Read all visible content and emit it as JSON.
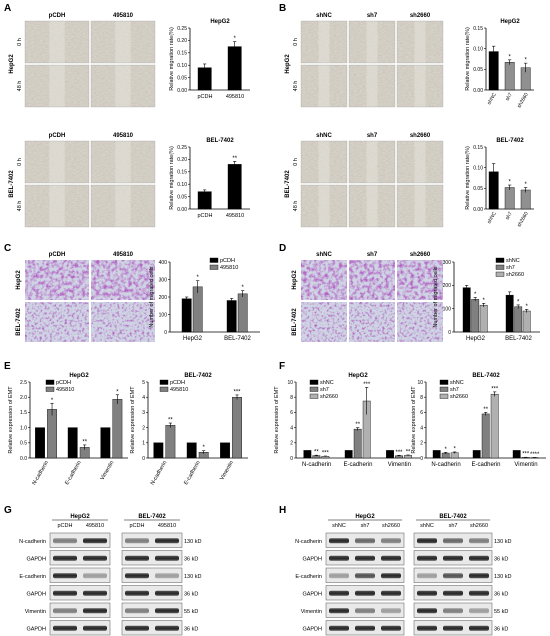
{
  "panels": {
    "A": {
      "letter": "A",
      "groups": [
        "pCDH",
        "495810"
      ],
      "rows": [
        "0 h",
        "48 h"
      ],
      "cell_lines": [
        "HepG2",
        "BEL-7402"
      ],
      "chart_data": [
        {
          "type": "bar",
          "title": "HepG2",
          "ylabel": "Relative migration rate(%)",
          "categories": [
            "pCDH",
            "495810"
          ],
          "values": [
            0.09,
            0.175
          ],
          "errors": [
            0.015,
            0.02
          ],
          "ylim": [
            0,
            0.25
          ],
          "yticks": [
            0.0,
            0.05,
            0.1,
            0.15,
            0.2,
            0.25
          ],
          "ytick_labels": [
            "0.00",
            "0.05",
            "0.10",
            "0.15",
            "0.20",
            "0.25"
          ],
          "significance": [
            "",
            "*"
          ]
        },
        {
          "type": "bar",
          "title": "BEL-7402",
          "ylabel": "Relative migration rate(%)",
          "categories": [
            "pCDH",
            "495810"
          ],
          "values": [
            0.07,
            0.18
          ],
          "errors": [
            0.007,
            0.012
          ],
          "ylim": [
            0,
            0.25
          ],
          "yticks": [
            0.0,
            0.05,
            0.1,
            0.15,
            0.2,
            0.25
          ],
          "ytick_labels": [
            "0.00",
            "0.05",
            "0.10",
            "0.15",
            "0.20",
            "0.25"
          ],
          "significance": [
            "",
            "**"
          ]
        }
      ]
    },
    "B": {
      "letter": "B",
      "groups": [
        "shNC",
        "sh7",
        "sh2660"
      ],
      "rows": [
        "0 h",
        "48 h"
      ],
      "cell_lines": [
        "HepG2",
        "BEL-7402"
      ],
      "chart_data": [
        {
          "type": "bar",
          "title": "HepG2",
          "ylabel": "Relative migration rate(%)",
          "categories": [
            "shNC",
            "sh7",
            "sh2660"
          ],
          "values": [
            0.093,
            0.067,
            0.054
          ],
          "errors": [
            0.013,
            0.006,
            0.011
          ],
          "ylim": [
            0,
            0.15
          ],
          "yticks": [
            0.0,
            0.05,
            0.1,
            0.15
          ],
          "ytick_labels": [
            "0.00",
            "0.05",
            "0.10",
            "0.15"
          ],
          "significance": [
            "",
            "*",
            "*"
          ]
        },
        {
          "type": "bar",
          "title": "BEL-7402",
          "ylabel": "Relative migration rate(%)",
          "categories": [
            "shNC",
            "sh7",
            "sh2660"
          ],
          "values": [
            0.09,
            0.052,
            0.046
          ],
          "errors": [
            0.02,
            0.006,
            0.006
          ],
          "ylim": [
            0,
            0.15
          ],
          "yticks": [
            0.0,
            0.05,
            0.1,
            0.15
          ],
          "ytick_labels": [
            "0.00",
            "0.05",
            "0.10",
            "0.15"
          ],
          "significance": [
            "",
            "*",
            "*"
          ]
        }
      ]
    },
    "C": {
      "letter": "C",
      "groups": [
        "pCDH",
        "495810"
      ],
      "cell_lines": [
        "HepG2",
        "BEL-7402"
      ],
      "chart_data": {
        "type": "bar",
        "ylabel": "Number of migrated cells",
        "categories": [
          "HepG2",
          "BEL-7402"
        ],
        "series": [
          {
            "name": "pCDH",
            "values": [
              190,
              180
            ],
            "errors": [
              10,
              12
            ],
            "color": "#000000"
          },
          {
            "name": "495810",
            "values": [
              258,
              218
            ],
            "errors": [
              35,
              18
            ],
            "color": "#808080"
          }
        ],
        "significance": [
          [
            "",
            "*"
          ],
          [
            "",
            "*"
          ]
        ],
        "ylim": [
          0,
          400
        ],
        "yticks": [
          0,
          100,
          200,
          300,
          400
        ],
        "legend": "top-right"
      }
    },
    "D": {
      "letter": "D",
      "groups": [
        "shNC",
        "sh7",
        "sh2660"
      ],
      "cell_lines": [
        "HepG2",
        "BEL-7402"
      ],
      "chart_data": {
        "type": "bar",
        "ylabel": "Number of migrated cells",
        "categories": [
          "HepG2",
          "BEL-7402"
        ],
        "series": [
          {
            "name": "shNC",
            "values": [
              190,
              158
            ],
            "errors": [
              10,
              14
            ],
            "color": "#000000"
          },
          {
            "name": "sh7",
            "values": [
              140,
              108
            ],
            "errors": [
              8,
              8
            ],
            "color": "#808080"
          },
          {
            "name": "sh2660",
            "values": [
              115,
              90
            ],
            "errors": [
              8,
              7
            ],
            "color": "#b0b0b0"
          }
        ],
        "significance": [
          [
            "",
            "*",
            "*"
          ],
          [
            "",
            "*",
            "*"
          ]
        ],
        "ylim": [
          0,
          300
        ],
        "yticks": [
          0,
          100,
          200,
          300
        ],
        "legend": "top-right"
      }
    },
    "E": {
      "letter": "E",
      "chart_data": [
        {
          "type": "bar",
          "title": "HepG2",
          "ylabel": "Relative expression of EMT",
          "categories": [
            "N-cadherin",
            "E-cadherin",
            "Vimentin"
          ],
          "series": [
            {
              "name": "pCDH",
              "values": [
                1,
                1,
                1
              ],
              "errors": [
                0,
                0,
                0
              ],
              "color": "#000000"
            },
            {
              "name": "495810",
              "values": [
                1.6,
                0.35,
                1.93
              ],
              "errors": [
                0.2,
                0.08,
                0.15
              ],
              "color": "#808080"
            }
          ],
          "significance": [
            [
              "",
              "*"
            ],
            [
              "",
              "**"
            ],
            [
              "",
              "*"
            ]
          ],
          "ylim": [
            0,
            2.5
          ],
          "yticks": [
            0.0,
            0.5,
            1.0,
            1.5,
            2.0,
            2.5
          ],
          "ytick_labels": [
            "0.0",
            "0.5",
            "1.0",
            "1.5",
            "2.0",
            "2.5"
          ],
          "legend": "top-left"
        },
        {
          "type": "bar",
          "title": "BEL-7402",
          "ylabel": "Relative expression of EMT",
          "categories": [
            "N-cadherin",
            "E-cadherin",
            "Vimentin"
          ],
          "series": [
            {
              "name": "pCDH",
              "values": [
                1,
                1,
                1
              ],
              "errors": [
                0,
                0,
                0
              ],
              "color": "#000000"
            },
            {
              "name": "495810",
              "values": [
                2.15,
                0.38,
                4.0
              ],
              "errors": [
                0.15,
                0.1,
                0.15
              ],
              "color": "#808080"
            }
          ],
          "significance": [
            [
              "",
              "**"
            ],
            [
              "",
              "*"
            ],
            [
              "",
              "***"
            ]
          ],
          "ylim": [
            0,
            5
          ],
          "yticks": [
            0,
            1,
            2,
            3,
            4,
            5
          ],
          "ytick_labels": [
            "0",
            "1",
            "2",
            "3",
            "4",
            "5"
          ],
          "legend": "top-left"
        }
      ]
    },
    "F": {
      "letter": "F",
      "chart_data": [
        {
          "type": "bar",
          "title": "HepG2",
          "ylabel": "Relative expression of EMT",
          "categories": [
            "N-cadherin",
            "E-cadherin",
            "Vimentin"
          ],
          "series": [
            {
              "name": "shNC",
              "values": [
                1,
                1,
                1
              ],
              "errors": [
                0,
                0,
                0
              ],
              "color": "#000000"
            },
            {
              "name": "sh7",
              "values": [
                0.32,
                3.8,
                0.3
              ],
              "errors": [
                0.05,
                0.2,
                0.05
              ],
              "color": "#808080"
            },
            {
              "name": "sh2660",
              "values": [
                0.22,
                7.5,
                0.35
              ],
              "errors": [
                0.04,
                1.8,
                0.05
              ],
              "color": "#b0b0b0"
            }
          ],
          "significance": [
            [
              "",
              "**",
              "***"
            ],
            [
              "",
              "**",
              "***"
            ],
            [
              "",
              "***",
              "**"
            ]
          ],
          "ylim": [
            0,
            10
          ],
          "yticks": [
            0,
            2,
            4,
            6,
            8,
            10
          ],
          "ytick_labels": [
            "0",
            "2",
            "4",
            "6",
            "8",
            "10"
          ],
          "legend": "top-left"
        },
        {
          "type": "bar",
          "title": "BEL-7402",
          "ylabel": "Relative expression of EMT",
          "categories": [
            "N-cadherin",
            "E-cadherin",
            "Vimentin"
          ],
          "series": [
            {
              "name": "shNC",
              "values": [
                1,
                1,
                1
              ],
              "errors": [
                0,
                0,
                0
              ],
              "color": "#000000"
            },
            {
              "name": "sh7",
              "values": [
                0.65,
                5.8,
                0.08
              ],
              "errors": [
                0.1,
                0.2,
                0.02
              ],
              "color": "#808080"
            },
            {
              "name": "sh2660",
              "values": [
                0.7,
                8.4,
                0.05
              ],
              "errors": [
                0.1,
                0.3,
                0.02
              ],
              "color": "#b0b0b0"
            }
          ],
          "significance": [
            [
              "",
              "*",
              "*"
            ],
            [
              "",
              "**",
              "***"
            ],
            [
              "",
              "***",
              "****"
            ]
          ],
          "ylim": [
            0,
            10
          ],
          "yticks": [
            0,
            2,
            4,
            6,
            8,
            10
          ],
          "ytick_labels": [
            "0",
            "2",
            "4",
            "6",
            "8",
            "10"
          ],
          "legend": "top-left"
        }
      ]
    },
    "G": {
      "letter": "G",
      "cell_lines": [
        "HepG2",
        "BEL-7402"
      ],
      "lanes": [
        "pCDH",
        "495810"
      ],
      "proteins": [
        "N-cadherin",
        "GAPDH",
        "E-cadherin",
        "GAPDH",
        "Vimentin",
        "GAPDH"
      ],
      "sizes": [
        "130 kD",
        "36 kD",
        "130 kD",
        "36 kD",
        "55 kD",
        "36 kD"
      ]
    },
    "H": {
      "letter": "H",
      "cell_lines": [
        "HepG2",
        "BEL-7402"
      ],
      "lanes": [
        "shNC",
        "sh7",
        "sh2660"
      ],
      "proteins": [
        "N-cadherin",
        "GAPDH",
        "E-cadherin",
        "GAPDH",
        "Vimentin",
        "GAPDH"
      ],
      "sizes": [
        "130 kD",
        "36 kD",
        "130 kD",
        "36 kD",
        "55 kD",
        "36 kD"
      ]
    }
  }
}
